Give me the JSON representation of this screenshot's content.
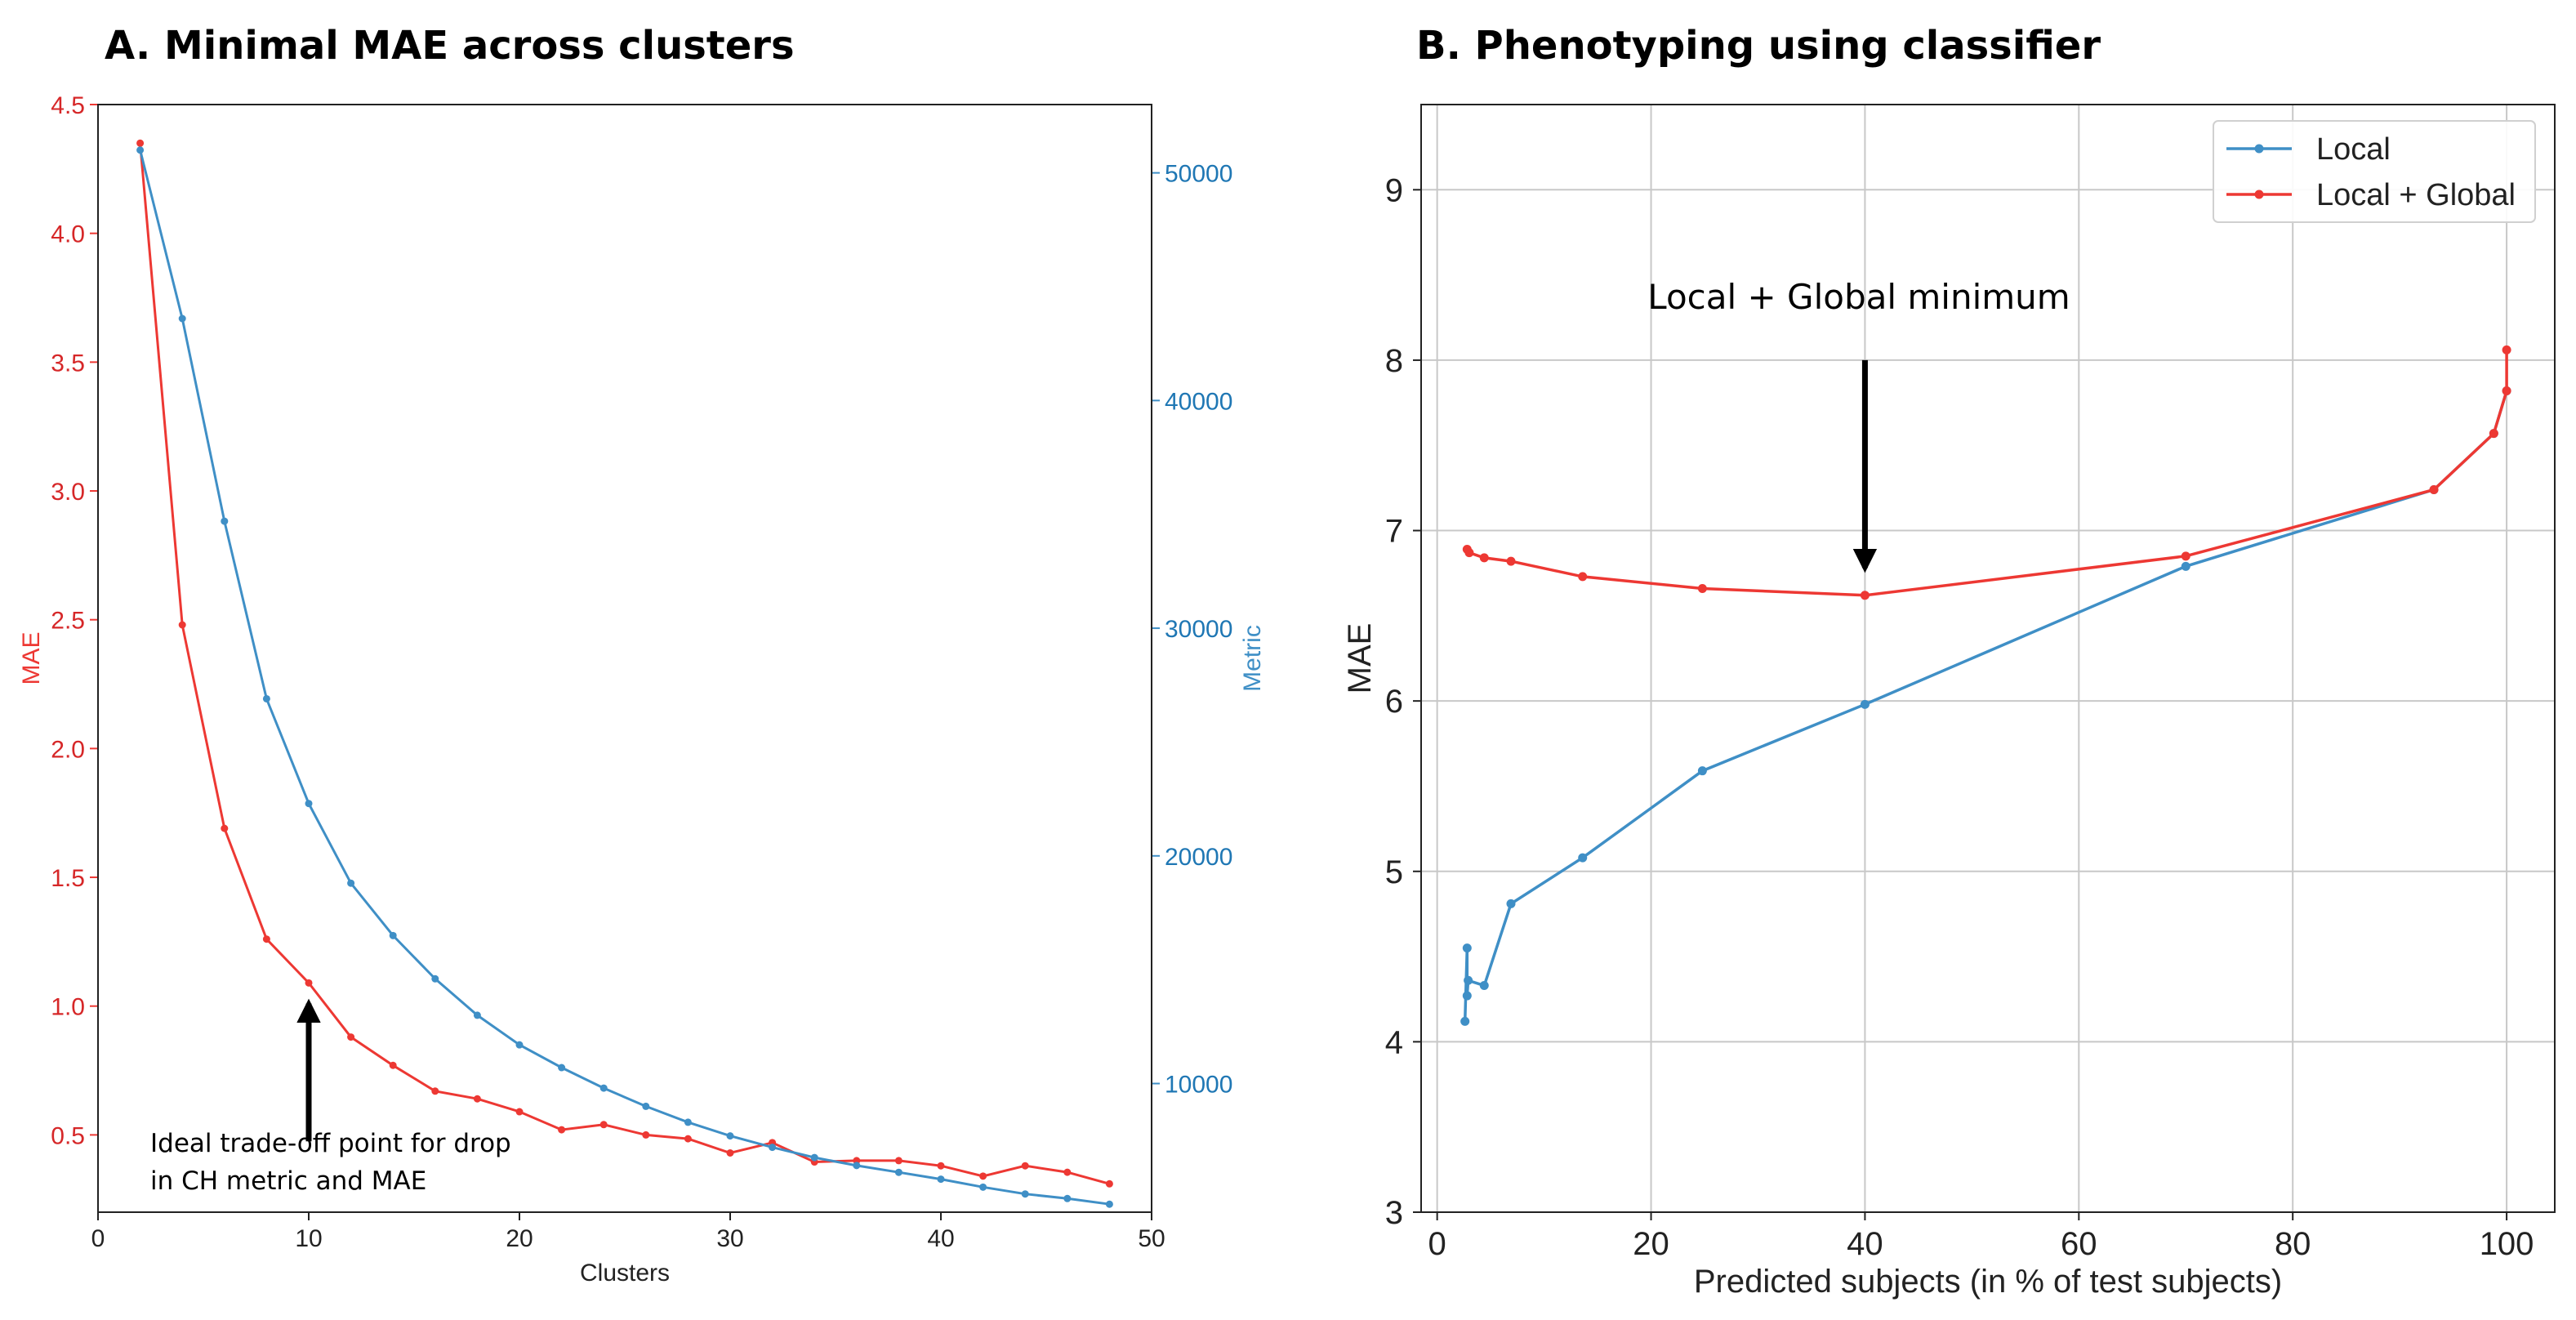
{
  "panels": {
    "a": {
      "title": "A. Minimal MAE across clusters"
    },
    "b": {
      "title": "B. Phenotyping using classifier"
    }
  },
  "colors": {
    "red": "#ed3833",
    "blue": "#3f8fc6"
  },
  "chart_data": [
    {
      "type": "line",
      "title": "A. Minimal MAE across clusters",
      "xlabel": "Clusters",
      "ylabel": "MAE",
      "y2label": "Metric",
      "xlim": [
        0,
        50
      ],
      "ylim": [
        0.2,
        4.5
      ],
      "y2lim": [
        4350,
        53000
      ],
      "xticks": [
        0,
        10,
        20,
        30,
        40,
        50
      ],
      "yticks": [
        0.5,
        1.0,
        1.5,
        2.0,
        2.5,
        3.0,
        3.5,
        4.0,
        4.5
      ],
      "y2ticks": [
        10000,
        20000,
        30000,
        40000,
        50000
      ],
      "grid": false,
      "x": [
        2,
        4,
        6,
        8,
        10,
        12,
        14,
        16,
        18,
        20,
        22,
        24,
        26,
        28,
        30,
        32,
        34,
        36,
        38,
        40,
        42,
        44,
        46,
        48
      ],
      "series": [
        {
          "name": "MAE",
          "axis": "left",
          "color": "#ed3833",
          "values": [
            4.35,
            2.48,
            1.69,
            1.26,
            1.09,
            0.88,
            0.77,
            0.67,
            0.64,
            0.59,
            0.52,
            0.54,
            0.5,
            0.485,
            0.43,
            0.47,
            0.395,
            0.4,
            0.4,
            0.38,
            0.34,
            0.38,
            0.355,
            0.31
          ]
        },
        {
          "name": "Metric",
          "axis": "right",
          "color": "#3f8fc6",
          "values": [
            51000,
            43600,
            34700,
            26900,
            22300,
            18800,
            16500,
            14600,
            13000,
            11700,
            10700,
            9800,
            9000,
            8300,
            7700,
            7200,
            6750,
            6400,
            6100,
            5800,
            5450,
            5150,
            4950,
            4700
          ]
        }
      ],
      "annotations": [
        {
          "text_line1": "Ideal trade-off point for drop",
          "text_line2": " in CH metric and MAE",
          "arrow_x": 10,
          "arrow_y_from": 0.475,
          "arrow_y_to": 1.01
        }
      ]
    },
    {
      "type": "line",
      "title": "B. Phenotyping using classifier",
      "xlabel": "Predicted subjects (in % of test subjects)",
      "ylabel": "MAE",
      "xlim": [
        -1.5,
        104.5
      ],
      "ylim": [
        3,
        9.5
      ],
      "xticks": [
        0,
        20,
        40,
        60,
        80,
        100
      ],
      "yticks": [
        3,
        4,
        5,
        6,
        7,
        8,
        9
      ],
      "grid": true,
      "legend": "top-right",
      "series": [
        {
          "name": "Local",
          "color": "#3f8fc6",
          "x": [
            100,
            98.8,
            93.2,
            70,
            40,
            24.8,
            13.6,
            6.9,
            4.4,
            2.9,
            2.8,
            2.8,
            2.6
          ],
          "y": [
            7.82,
            7.57,
            7.24,
            6.79,
            5.98,
            5.59,
            5.08,
            4.81,
            4.33,
            4.36,
            4.27,
            4.55,
            4.12
          ]
        },
        {
          "name": "Local + Global",
          "color": "#ed3833",
          "x": [
            100,
            100,
            98.8,
            93.2,
            70,
            40,
            24.8,
            13.6,
            6.9,
            4.4,
            3.0,
            2.8
          ],
          "y": [
            8.06,
            7.82,
            7.57,
            7.24,
            6.85,
            6.62,
            6.66,
            6.73,
            6.82,
            6.84,
            6.87,
            6.89
          ]
        }
      ],
      "annotations": [
        {
          "text": "Local + Global minimum",
          "arrow_x": 40,
          "arrow_y_from": 8.0,
          "arrow_y_to": 6.78
        }
      ]
    }
  ]
}
